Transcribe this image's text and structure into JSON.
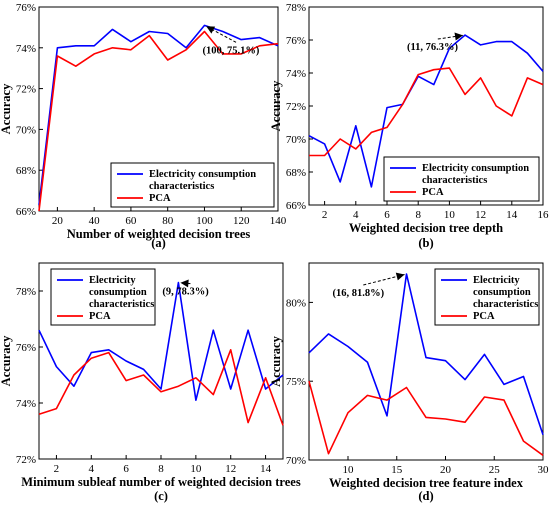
{
  "colors": {
    "series_1": "#0000ff",
    "series_2": "#ff0000",
    "axis": "#000000"
  },
  "chart_data": [
    {
      "panel": "(a)",
      "type": "line",
      "xlabel": "Number of weighted decision trees",
      "ylabel": "Accuracy",
      "xlim": [
        10,
        140
      ],
      "ylim": [
        66,
        76
      ],
      "xticks": [
        20,
        40,
        60,
        80,
        100,
        120,
        140
      ],
      "yticks": [
        66,
        68,
        70,
        72,
        74,
        76
      ],
      "yunit": "%",
      "legend": {
        "placement": "bottom-right",
        "lines": [
          [
            "Electricity consumption",
            "characteristics"
          ],
          [
            "PCA"
          ]
        ]
      },
      "series": [
        {
          "name": "Electricity consumption characteristics",
          "x": [
            10,
            20,
            30,
            40,
            50,
            60,
            70,
            80,
            90,
            100,
            110,
            120,
            130,
            140
          ],
          "y": [
            66.3,
            74.0,
            74.1,
            74.1,
            74.9,
            74.3,
            74.8,
            74.7,
            74.0,
            75.1,
            74.8,
            74.4,
            74.5,
            74.1
          ]
        },
        {
          "name": "PCA",
          "x": [
            10,
            20,
            30,
            40,
            50,
            60,
            70,
            80,
            90,
            100,
            110,
            120,
            130,
            140
          ],
          "y": [
            66.0,
            73.6,
            73.1,
            73.7,
            74.0,
            73.9,
            74.6,
            73.4,
            73.9,
            74.8,
            73.7,
            73.7,
            74.1,
            74.2
          ]
        }
      ],
      "annotation": {
        "text": "(100, 75.1%)",
        "x": 100,
        "y": 75.1
      }
    },
    {
      "panel": "(b)",
      "type": "line",
      "xlabel": "Weighted decision tree depth",
      "ylabel": "Accuracy",
      "xlim": [
        1,
        16
      ],
      "ylim": [
        66,
        78
      ],
      "xticks": [
        2,
        4,
        6,
        8,
        10,
        12,
        14,
        16
      ],
      "yticks": [
        66,
        68,
        70,
        72,
        74,
        76,
        78
      ],
      "yunit": "%",
      "legend": {
        "placement": "bottom-right",
        "lines": [
          [
            "Electricity consumption",
            "characteristics"
          ],
          [
            "PCA"
          ]
        ]
      },
      "series": [
        {
          "name": "Electricity consumption characteristics",
          "x": [
            1,
            2,
            3,
            4,
            5,
            6,
            7,
            8,
            9,
            10,
            11,
            12,
            13,
            14,
            15,
            16
          ],
          "y": [
            70.2,
            69.7,
            67.4,
            70.8,
            67.1,
            71.9,
            72.1,
            73.8,
            73.3,
            75.5,
            76.3,
            75.7,
            75.9,
            75.9,
            75.2,
            74.1
          ]
        },
        {
          "name": "PCA",
          "x": [
            1,
            2,
            3,
            4,
            5,
            6,
            7,
            8,
            9,
            10,
            11,
            12,
            13,
            14,
            15,
            16
          ],
          "y": [
            69.0,
            69.0,
            70.0,
            69.4,
            70.4,
            70.7,
            72.1,
            73.9,
            74.2,
            74.3,
            72.7,
            73.7,
            72.0,
            71.4,
            73.7,
            73.3
          ]
        }
      ],
      "annotation": {
        "text": "(11, 76.3%)",
        "x": 11,
        "y": 76.3
      }
    },
    {
      "panel": "(c)",
      "type": "line",
      "xlabel": "Minimum subleaf number of weighted decision trees",
      "ylabel": "Accuracy",
      "xlim": [
        1,
        15
      ],
      "ylim": [
        72,
        79
      ],
      "xticks": [
        2,
        4,
        6,
        8,
        10,
        12,
        14
      ],
      "yticks": [
        72,
        74,
        76,
        78
      ],
      "yunit": "%",
      "legend": {
        "placement": "top-left",
        "lines": [
          [
            "Electricity"
          ],
          [
            "consumption"
          ],
          [
            "characteristics"
          ],
          [
            "PCA"
          ]
        ]
      },
      "series": [
        {
          "name": "Electricity consumption characteristics",
          "x": [
            1,
            2,
            3,
            4,
            5,
            6,
            7,
            8,
            9,
            10,
            11,
            12,
            13,
            14,
            15
          ],
          "y": [
            76.6,
            75.3,
            74.6,
            75.8,
            75.9,
            75.5,
            75.2,
            74.5,
            78.3,
            74.1,
            76.6,
            74.5,
            76.6,
            74.5,
            75.0
          ]
        },
        {
          "name": "PCA",
          "x": [
            1,
            2,
            3,
            4,
            5,
            6,
            7,
            8,
            9,
            10,
            11,
            12,
            13,
            14,
            15
          ],
          "y": [
            73.6,
            73.8,
            75.0,
            75.6,
            75.8,
            74.8,
            75.0,
            74.4,
            74.6,
            74.9,
            74.3,
            75.9,
            73.3,
            74.9,
            73.2
          ]
        }
      ],
      "annotation": {
        "text": "(9, 78.3%)",
        "x": 9,
        "y": 78.3
      }
    },
    {
      "panel": "(d)",
      "type": "line",
      "xlabel": "Weighted decision tree feature index",
      "ylabel": "Accuracy",
      "xlim": [
        6,
        30
      ],
      "ylim": [
        70,
        82.5
      ],
      "xticks": [
        10,
        15,
        20,
        25,
        30
      ],
      "yticks": [
        70,
        75,
        80
      ],
      "yunit": "%",
      "legend": {
        "placement": "top-right",
        "lines": [
          [
            "Electricity"
          ],
          [
            "consumption"
          ],
          [
            "characteristics"
          ],
          [
            "PCA"
          ]
        ]
      },
      "series": [
        {
          "name": "Electricity consumption characteristics",
          "x": [
            6,
            8,
            10,
            12,
            14,
            16,
            18,
            20,
            22,
            24,
            26,
            28,
            30
          ],
          "y": [
            76.8,
            78.0,
            77.2,
            76.2,
            72.8,
            81.8,
            76.5,
            76.3,
            75.1,
            76.7,
            74.8,
            75.3,
            71.6
          ]
        },
        {
          "name": "PCA",
          "x": [
            6,
            8,
            10,
            12,
            14,
            16,
            18,
            20,
            22,
            24,
            26,
            28,
            30
          ],
          "y": [
            75.0,
            70.4,
            73.0,
            74.1,
            73.8,
            74.6,
            72.7,
            72.6,
            72.4,
            74.0,
            73.8,
            71.2,
            70.3
          ]
        }
      ],
      "annotation": {
        "text": "(16, 81.8%)",
        "x": 16,
        "y": 81.8
      }
    }
  ]
}
